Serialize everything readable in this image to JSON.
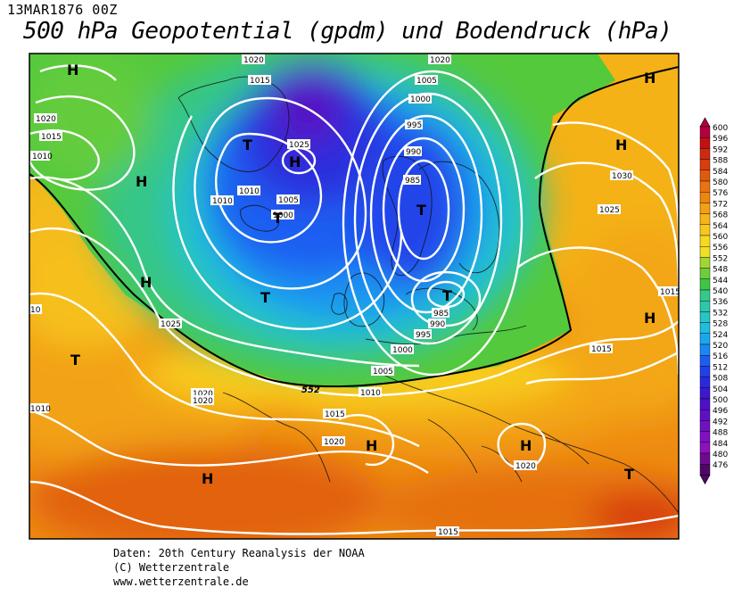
{
  "header": {
    "datetime": "13MAR1876 00Z",
    "title": "500 hPa Geopotential (gpdm) und Bodendruck (hPa)"
  },
  "footer": {
    "line1": "Daten: 20th Century Reanalysis der NOAA",
    "line2": "(C) Wetterzentrale",
    "line3": "www.wetterzentrale.de"
  },
  "legend": {
    "values": [
      "600",
      "596",
      "592",
      "588",
      "584",
      "580",
      "576",
      "572",
      "568",
      "564",
      "560",
      "556",
      "552",
      "548",
      "544",
      "540",
      "536",
      "532",
      "528",
      "524",
      "520",
      "516",
      "512",
      "508",
      "504",
      "500",
      "496",
      "492",
      "488",
      "484",
      "480",
      "476"
    ],
    "colors": [
      "#b3003f",
      "#c21015",
      "#cf2a10",
      "#d83d0c",
      "#e05a0d",
      "#e9730f",
      "#ee8510",
      "#f4a015",
      "#f6b519",
      "#f8c61d",
      "#f7d922",
      "#efe022",
      "#a4d633",
      "#6ccd3d",
      "#3fc448",
      "#35c88a",
      "#2cc9a9",
      "#25c6c4",
      "#1fbde0",
      "#19a8f0",
      "#1988f2",
      "#1c5ef2",
      "#2040ea",
      "#2a29dd",
      "#3a19d0",
      "#4d11c6",
      "#6010c4",
      "#7010c4",
      "#8010c2",
      "#8d12bc",
      "#6d0a8e",
      "#4e0766"
    ]
  },
  "map": {
    "contour_552_label": "552",
    "pressure_labels": [
      "1020",
      "1015",
      "1010",
      "1005",
      "1000",
      "995",
      "990",
      "985",
      "1025",
      "1030",
      "1020",
      "1015",
      "1010",
      "1005",
      "1000",
      "995",
      "990",
      "985",
      "1025",
      "1020",
      "1015",
      "1010",
      "1005",
      "1000",
      "1010",
      "1015",
      "1020",
      "1020",
      "1020",
      "1015",
      "1025",
      "1015",
      "10",
      "1010",
      "1020",
      "1030",
      "1025"
    ],
    "pressure_markers": [
      {
        "symbol": "H"
      },
      {
        "symbol": "H"
      },
      {
        "symbol": "T"
      },
      {
        "symbol": "H"
      },
      {
        "symbol": "T"
      },
      {
        "symbol": "H"
      },
      {
        "symbol": "T"
      },
      {
        "symbol": "T"
      },
      {
        "symbol": "T"
      },
      {
        "symbol": "H"
      },
      {
        "symbol": "H"
      },
      {
        "symbol": "H"
      },
      {
        "symbol": "T"
      },
      {
        "symbol": "T"
      },
      {
        "symbol": "H"
      },
      {
        "symbol": "H"
      },
      {
        "symbol": "H"
      },
      {
        "symbol": "T"
      }
    ]
  }
}
